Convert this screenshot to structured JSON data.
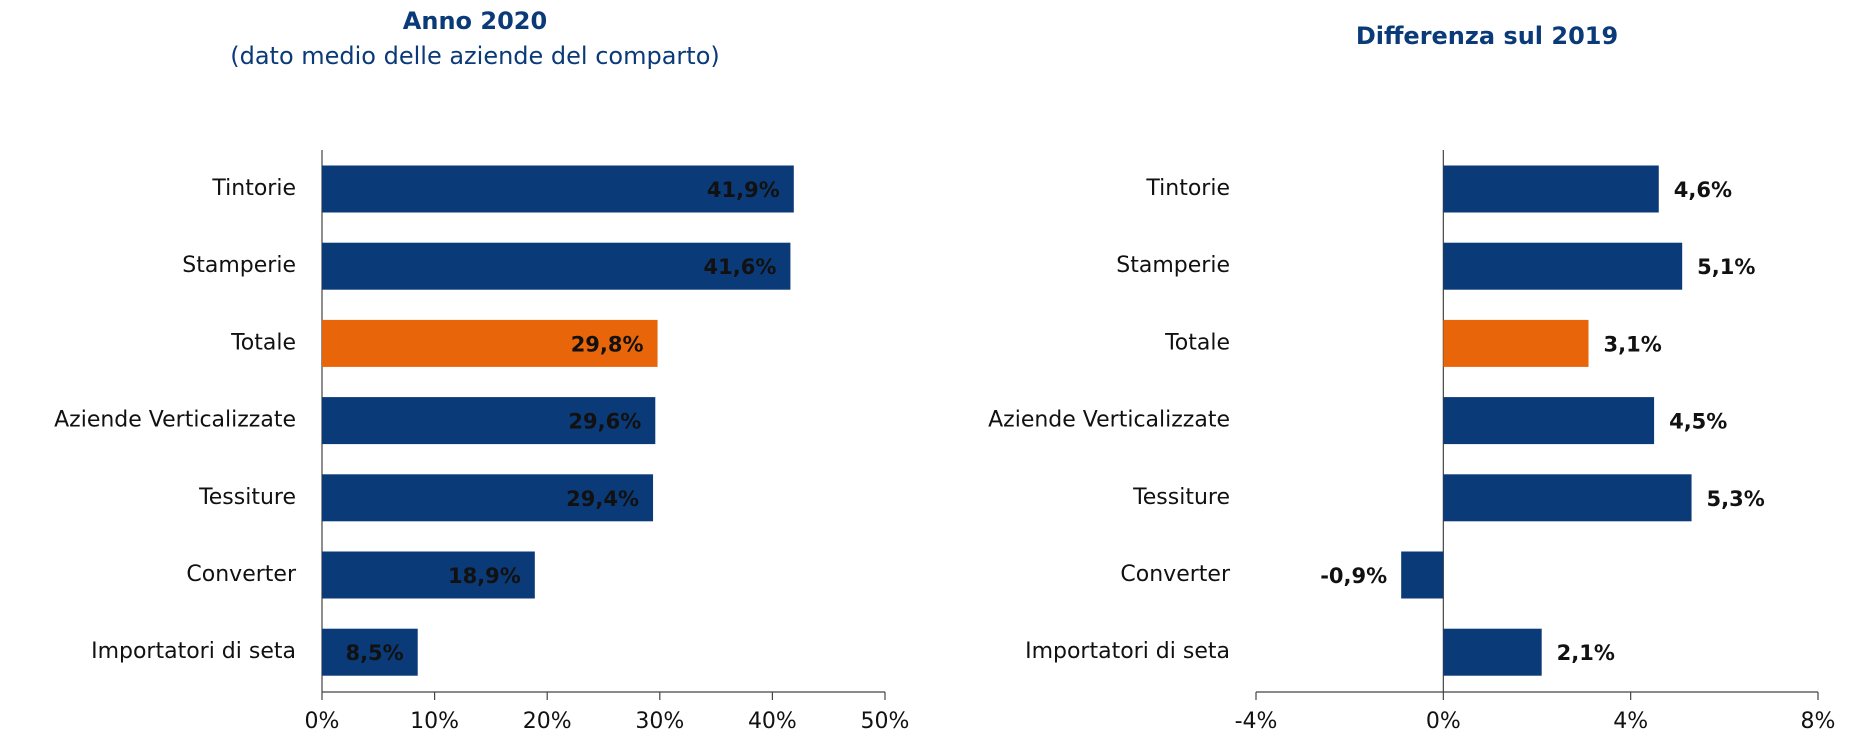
{
  "chart_data": [
    {
      "type": "bar",
      "orientation": "horizontal",
      "title": "Anno 2020",
      "subtitle": "(dato medio delle aziende del comparto)",
      "categories": [
        "Tintorie",
        "Stamperie",
        "Totale",
        "Aziende Verticalizzate",
        "Tessiture",
        "Converter",
        "Importatori di seta"
      ],
      "values": [
        41.9,
        41.6,
        29.8,
        29.6,
        29.4,
        18.9,
        8.5
      ],
      "value_labels": [
        "41,9%",
        "41,6%",
        "29,8%",
        "29,6%",
        "29,4%",
        "18,9%",
        "8,5%"
      ],
      "colors": [
        "#0b3a78",
        "#0b3a78",
        "#e8650a",
        "#0b3a78",
        "#0b3a78",
        "#0b3a78",
        "#0b3a78"
      ],
      "value_label_position": "inside",
      "xlim": [
        0,
        50
      ],
      "xticks": [
        {
          "value": 0,
          "label": "0%"
        },
        {
          "value": 10,
          "label": "10%"
        },
        {
          "value": 20,
          "label": "20%"
        },
        {
          "value": 30,
          "label": "30%"
        },
        {
          "value": 40,
          "label": "40%"
        },
        {
          "value": 50,
          "label": "50%"
        }
      ]
    },
    {
      "type": "bar",
      "orientation": "horizontal",
      "title": "Differenza sul 2019",
      "categories": [
        "Tintorie",
        "Stamperie",
        "Totale",
        "Aziende Verticalizzate",
        "Tessiture",
        "Converter",
        "Importatori di seta"
      ],
      "values": [
        4.6,
        5.1,
        3.1,
        4.5,
        5.3,
        -0.9,
        2.1
      ],
      "value_labels": [
        "4,6%",
        "5,1%",
        "3,1%",
        "4,5%",
        "5,3%",
        "-0,9%",
        "2,1%"
      ],
      "colors": [
        "#0b3a78",
        "#0b3a78",
        "#e8650a",
        "#0b3a78",
        "#0b3a78",
        "#0b3a78",
        "#0b3a78"
      ],
      "value_label_position": "outside",
      "xlim": [
        -4,
        8
      ],
      "xticks": [
        {
          "value": -4,
          "label": "-4%"
        },
        {
          "value": 0,
          "label": "0%"
        },
        {
          "value": 4,
          "label": "4%"
        },
        {
          "value": 8,
          "label": "8%"
        }
      ]
    }
  ]
}
